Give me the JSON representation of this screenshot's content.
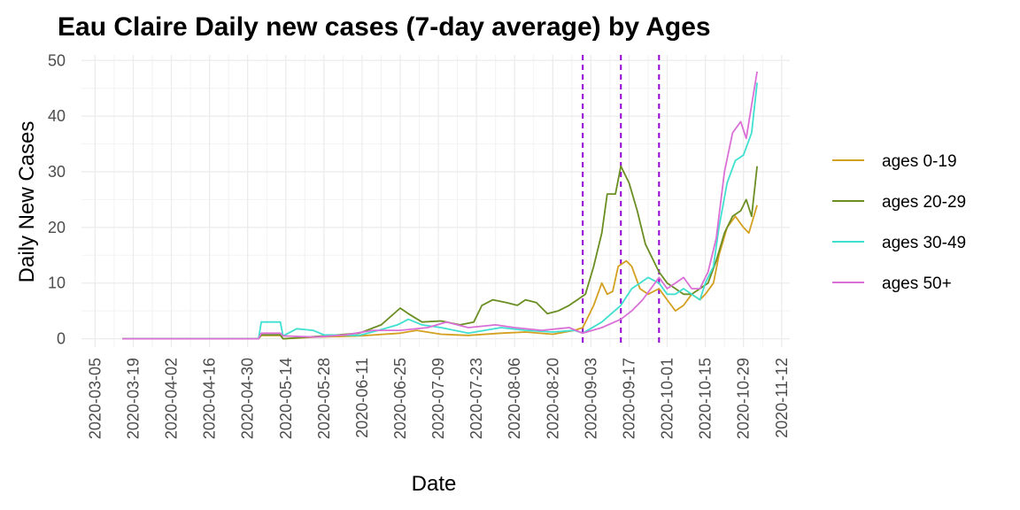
{
  "chart_data": {
    "type": "line",
    "title": "Eau Claire Daily new cases (7-day average) by Ages",
    "xlabel": "Date",
    "ylabel": "Daily New Cases",
    "x_ticks": [
      "2020-03-05",
      "2020-03-19",
      "2020-04-02",
      "2020-04-16",
      "2020-04-30",
      "2020-05-14",
      "2020-05-28",
      "2020-06-11",
      "2020-06-25",
      "2020-07-09",
      "2020-07-23",
      "2020-08-06",
      "2020-08-20",
      "2020-09-03",
      "2020-09-17",
      "2020-10-01",
      "2020-10-15",
      "2020-10-29",
      "2020-11-12"
    ],
    "xlim": [
      "2020-02-29",
      "2020-11-15"
    ],
    "y_ticks": [
      0,
      10,
      20,
      30,
      40,
      50
    ],
    "ylim": [
      -1.5,
      51
    ],
    "grid": true,
    "legend_position": "right",
    "vlines": {
      "dates": [
        "2020-08-31",
        "2020-09-14",
        "2020-09-28"
      ],
      "color": "#9400D3",
      "style": "dashed"
    },
    "series": [
      {
        "name": "ages 0-19",
        "color": "#D4A020",
        "points": [
          [
            "2020-03-15",
            0
          ],
          [
            "2020-05-04",
            0
          ],
          [
            "2020-05-05",
            0.6
          ],
          [
            "2020-05-12",
            0.6
          ],
          [
            "2020-05-13",
            0
          ],
          [
            "2020-05-25",
            0.3
          ],
          [
            "2020-06-10",
            0.5
          ],
          [
            "2020-06-25",
            1.0
          ],
          [
            "2020-07-01",
            1.5
          ],
          [
            "2020-07-10",
            0.8
          ],
          [
            "2020-07-20",
            0.6
          ],
          [
            "2020-08-01",
            1.0
          ],
          [
            "2020-08-10",
            1.2
          ],
          [
            "2020-08-20",
            0.8
          ],
          [
            "2020-08-28",
            1.5
          ],
          [
            "2020-08-31",
            2
          ],
          [
            "2020-09-04",
            6
          ],
          [
            "2020-09-07",
            10
          ],
          [
            "2020-09-09",
            8
          ],
          [
            "2020-09-11",
            8.5
          ],
          [
            "2020-09-13",
            13
          ],
          [
            "2020-09-16",
            14
          ],
          [
            "2020-09-18",
            13
          ],
          [
            "2020-09-21",
            9
          ],
          [
            "2020-09-24",
            8
          ],
          [
            "2020-09-28",
            9
          ],
          [
            "2020-10-01",
            7
          ],
          [
            "2020-10-04",
            5
          ],
          [
            "2020-10-07",
            6
          ],
          [
            "2020-10-10",
            8
          ],
          [
            "2020-10-13",
            7
          ],
          [
            "2020-10-15",
            8
          ],
          [
            "2020-10-18",
            10
          ],
          [
            "2020-10-20",
            15
          ],
          [
            "2020-10-23",
            20
          ],
          [
            "2020-10-26",
            22
          ],
          [
            "2020-10-29",
            20
          ],
          [
            "2020-10-31",
            19
          ],
          [
            "2020-11-03",
            24
          ]
        ]
      },
      {
        "name": "ages 20-29",
        "color": "#6B8E23",
        "points": [
          [
            "2020-03-15",
            0
          ],
          [
            "2020-05-04",
            0
          ],
          [
            "2020-05-05",
            0.7
          ],
          [
            "2020-05-12",
            0.7
          ],
          [
            "2020-05-13",
            0
          ],
          [
            "2020-05-28",
            0.5
          ],
          [
            "2020-06-10",
            1.0
          ],
          [
            "2020-06-18",
            2.5
          ],
          [
            "2020-06-25",
            5.5
          ],
          [
            "2020-06-28",
            4.5
          ],
          [
            "2020-07-03",
            3
          ],
          [
            "2020-07-10",
            3.2
          ],
          [
            "2020-07-17",
            2.5
          ],
          [
            "2020-07-22",
            3
          ],
          [
            "2020-07-25",
            6
          ],
          [
            "2020-07-29",
            7
          ],
          [
            "2020-08-03",
            6.5
          ],
          [
            "2020-08-07",
            6
          ],
          [
            "2020-08-10",
            7
          ],
          [
            "2020-08-14",
            6.5
          ],
          [
            "2020-08-18",
            4.5
          ],
          [
            "2020-08-22",
            5
          ],
          [
            "2020-08-26",
            6
          ],
          [
            "2020-08-29",
            7
          ],
          [
            "2020-09-01",
            8
          ],
          [
            "2020-09-04",
            13
          ],
          [
            "2020-09-07",
            19
          ],
          [
            "2020-09-09",
            26
          ],
          [
            "2020-09-12",
            26
          ],
          [
            "2020-09-14",
            31
          ],
          [
            "2020-09-17",
            28
          ],
          [
            "2020-09-20",
            23
          ],
          [
            "2020-09-23",
            17
          ],
          [
            "2020-09-26",
            14
          ],
          [
            "2020-09-28",
            12
          ],
          [
            "2020-10-01",
            10
          ],
          [
            "2020-10-04",
            9
          ],
          [
            "2020-10-07",
            8
          ],
          [
            "2020-10-10",
            8
          ],
          [
            "2020-10-13",
            9
          ],
          [
            "2020-10-16",
            10
          ],
          [
            "2020-10-19",
            14
          ],
          [
            "2020-10-22",
            19
          ],
          [
            "2020-10-25",
            22
          ],
          [
            "2020-10-28",
            23
          ],
          [
            "2020-10-30",
            25
          ],
          [
            "2020-11-01",
            22
          ],
          [
            "2020-11-03",
            31
          ]
        ]
      },
      {
        "name": "ages 30-49",
        "color": "#40E0D0",
        "points": [
          [
            "2020-03-15",
            0
          ],
          [
            "2020-05-04",
            0
          ],
          [
            "2020-05-05",
            3
          ],
          [
            "2020-05-12",
            3
          ],
          [
            "2020-05-13",
            0.5
          ],
          [
            "2020-05-18",
            1.8
          ],
          [
            "2020-05-24",
            1.5
          ],
          [
            "2020-05-28",
            0.7
          ],
          [
            "2020-06-10",
            0.6
          ],
          [
            "2020-06-17",
            1.5
          ],
          [
            "2020-06-24",
            2.5
          ],
          [
            "2020-06-28",
            3.5
          ],
          [
            "2020-07-03",
            2.5
          ],
          [
            "2020-07-10",
            2
          ],
          [
            "2020-07-20",
            1
          ],
          [
            "2020-08-01",
            2
          ],
          [
            "2020-08-10",
            1.5
          ],
          [
            "2020-08-20",
            1.2
          ],
          [
            "2020-08-28",
            1.5
          ],
          [
            "2020-08-31",
            1
          ],
          [
            "2020-09-07",
            3
          ],
          [
            "2020-09-14",
            6
          ],
          [
            "2020-09-18",
            9
          ],
          [
            "2020-09-21",
            10
          ],
          [
            "2020-09-24",
            11
          ],
          [
            "2020-09-28",
            10
          ],
          [
            "2020-10-01",
            8
          ],
          [
            "2020-10-04",
            8
          ],
          [
            "2020-10-07",
            9
          ],
          [
            "2020-10-10",
            8
          ],
          [
            "2020-10-13",
            7
          ],
          [
            "2020-10-15",
            10
          ],
          [
            "2020-10-18",
            13
          ],
          [
            "2020-10-20",
            20
          ],
          [
            "2020-10-23",
            28
          ],
          [
            "2020-10-26",
            32
          ],
          [
            "2020-10-29",
            33
          ],
          [
            "2020-11-01",
            37
          ],
          [
            "2020-11-03",
            46
          ]
        ]
      },
      {
        "name": "ages 50+",
        "color": "#DA70D6",
        "points": [
          [
            "2020-03-15",
            0
          ],
          [
            "2020-05-04",
            0
          ],
          [
            "2020-05-05",
            1.0
          ],
          [
            "2020-05-12",
            1.0
          ],
          [
            "2020-05-13",
            0.5
          ],
          [
            "2020-05-25",
            0.3
          ],
          [
            "2020-06-05",
            0.7
          ],
          [
            "2020-06-15",
            1.5
          ],
          [
            "2020-06-25",
            1.5
          ],
          [
            "2020-07-05",
            2
          ],
          [
            "2020-07-12",
            3
          ],
          [
            "2020-07-20",
            2
          ],
          [
            "2020-07-30",
            2.5
          ],
          [
            "2020-08-06",
            2
          ],
          [
            "2020-08-16",
            1.5
          ],
          [
            "2020-08-26",
            2
          ],
          [
            "2020-08-31",
            1
          ],
          [
            "2020-09-07",
            2
          ],
          [
            "2020-09-14",
            3.5
          ],
          [
            "2020-09-18",
            5
          ],
          [
            "2020-09-22",
            7
          ],
          [
            "2020-09-25",
            9
          ],
          [
            "2020-09-28",
            11
          ],
          [
            "2020-10-01",
            9
          ],
          [
            "2020-10-04",
            10
          ],
          [
            "2020-10-07",
            11
          ],
          [
            "2020-10-10",
            9
          ],
          [
            "2020-10-13",
            9
          ],
          [
            "2020-10-16",
            12
          ],
          [
            "2020-10-19",
            18
          ],
          [
            "2020-10-22",
            30
          ],
          [
            "2020-10-25",
            37
          ],
          [
            "2020-10-28",
            39
          ],
          [
            "2020-10-30",
            36
          ],
          [
            "2020-11-01",
            42
          ],
          [
            "2020-11-03",
            48
          ]
        ]
      }
    ]
  }
}
